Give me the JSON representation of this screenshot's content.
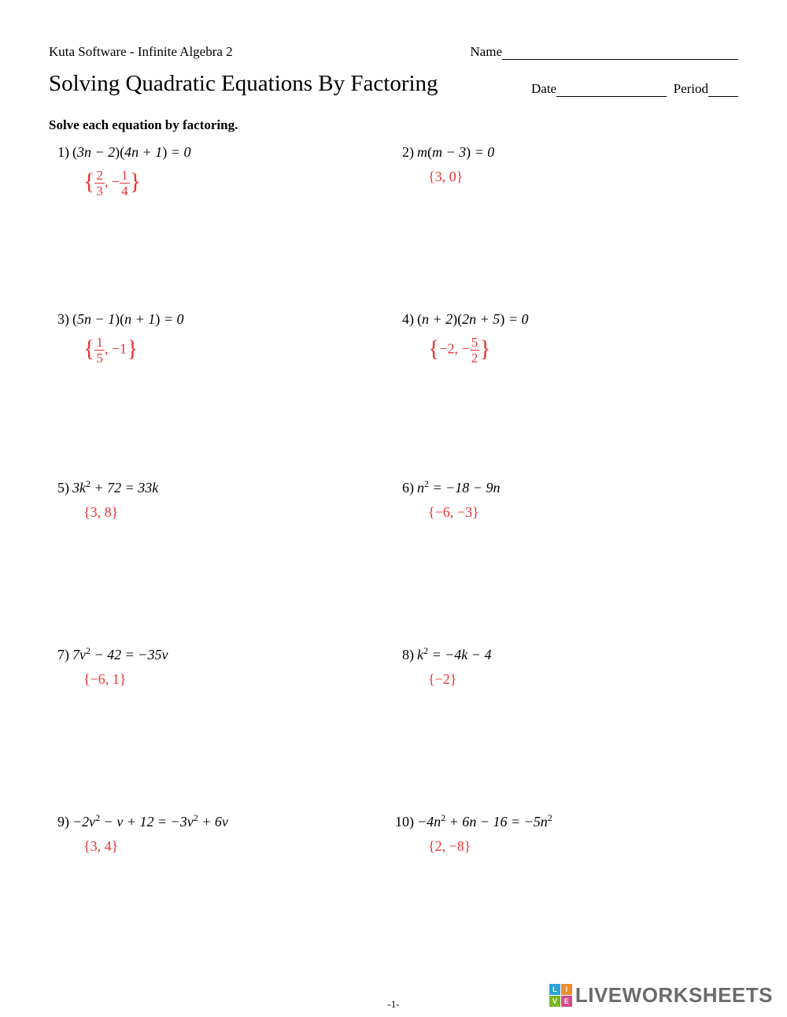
{
  "header": {
    "software": "Kuta Software - Infinite Algebra 2",
    "name_label": "Name",
    "title": "Solving Quadratic Equations By Factoring",
    "date_label": "Date",
    "period_label": "Period"
  },
  "instruction": "Solve each equation by factoring.",
  "problems": [
    {
      "num": "1)",
      "eq_html": "<span class='paren'>(</span>3<i>n</i> − 2<span class='paren'>)(</span>4<i>n</i> + 1<span class='paren'>)</span> = 0",
      "ans_html": "<span class='brace-l'>{</span><span class='frac'><span class='num'>2</span><span class='den'>3</span></span>, −<span class='frac'><span class='num'>1</span><span class='den'>4</span></span><span class='brace-r'>}</span>"
    },
    {
      "num": "2)",
      "eq_html": "<i>m</i><span class='paren'>(</span><i>m</i> − 3<span class='paren'>)</span> = 0",
      "ans_html": "{3, 0}"
    },
    {
      "num": "3)",
      "eq_html": "<span class='paren'>(</span>5<i>n</i> − 1<span class='paren'>)(</span><i>n</i> + 1<span class='paren'>)</span> = 0",
      "ans_html": "<span class='brace-l'>{</span><span class='frac'><span class='num'>1</span><span class='den'>5</span></span>, −1<span class='brace-r'>}</span>"
    },
    {
      "num": "4)",
      "eq_html": "<span class='paren'>(</span><i>n</i> + 2<span class='paren'>)(</span>2<i>n</i> + 5<span class='paren'>)</span> = 0",
      "ans_html": "<span class='brace-l'>{</span>−2, −<span class='frac'><span class='num'>5</span><span class='den'>2</span></span><span class='brace-r'>}</span>"
    },
    {
      "num": "5)",
      "eq_html": "3<i>k</i><span class='sup'>2</span> + 72 = 33<i>k</i>",
      "ans_html": "{3, 8}"
    },
    {
      "num": "6)",
      "eq_html": "<i>n</i><span class='sup'>2</span> = −18 − 9<i>n</i>",
      "ans_html": "{−6, −3}"
    },
    {
      "num": "7)",
      "eq_html": "7<i>v</i><span class='sup'>2</span> − 42 = −35<i>v</i>",
      "ans_html": "{−6, 1}"
    },
    {
      "num": "8)",
      "eq_html": "<i>k</i><span class='sup'>2</span> = −4<i>k</i> − 4",
      "ans_html": "{−2}"
    },
    {
      "num": "9)",
      "eq_html": "−2<i>v</i><span class='sup'>2</span> − <i>v</i> + 12 = −3<i>v</i><span class='sup'>2</span> + 6<i>v</i>",
      "ans_html": "{3, 4}"
    },
    {
      "num": "10)",
      "eq_html": "−4<i>n</i><span class='sup'>2</span> + 6<i>n</i> − 16 = −5<i>n</i><span class='sup'>2</span>",
      "ans_html": "{2, −8}"
    }
  ],
  "page_number": "-1-",
  "watermark": {
    "text": "LIVEWORKSHEETS",
    "logo_cells": [
      "L",
      "I",
      "V",
      "E"
    ],
    "logo_colors": [
      "#2aa3d9",
      "#f08c2e",
      "#7ab51d",
      "#d94a8c"
    ]
  },
  "answer_color": "#ee3333"
}
